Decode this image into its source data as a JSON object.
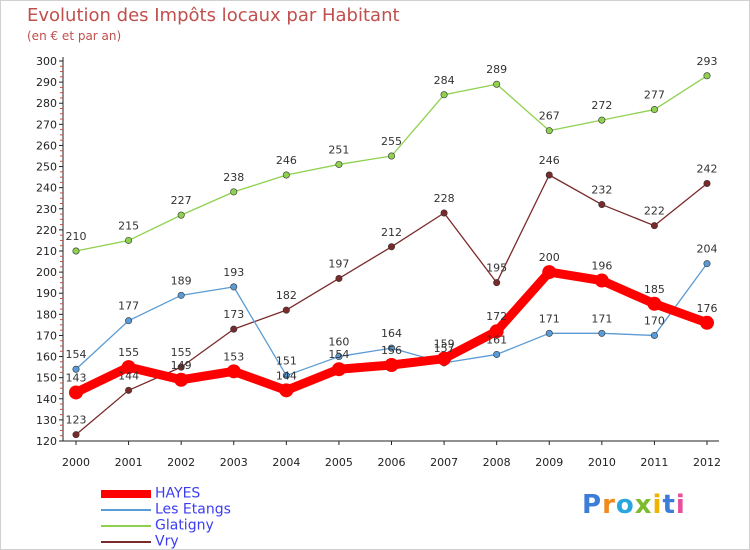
{
  "title": "Evolution des Impôts locaux par Habitant",
  "subtitle": "(en € et par an)",
  "logo": "Proxiti",
  "chart_data": {
    "type": "line",
    "title": "Evolution des Impôts locaux par Habitant",
    "subtitle": "(en € et par an)",
    "xlabel": "",
    "ylabel": "",
    "ylim": [
      120,
      300
    ],
    "ytick_step": 10,
    "grid": false,
    "legend_position": "bottom-left",
    "categories": [
      "2000",
      "2001",
      "2002",
      "2003",
      "2004",
      "2005",
      "2006",
      "2007",
      "2008",
      "2009",
      "2010",
      "2011",
      "2012"
    ],
    "series": [
      {
        "name": "HAYES",
        "color": "#ff0000",
        "values": [
          143,
          155,
          149,
          153,
          144,
          154,
          156,
          159,
          172,
          200,
          196,
          185,
          176
        ]
      },
      {
        "name": "Les Etangs",
        "color": "#5a9bd5",
        "values": [
          154,
          177,
          189,
          193,
          151,
          160,
          164,
          157,
          161,
          171,
          171,
          170,
          204
        ]
      },
      {
        "name": "Glatigny",
        "color": "#8fd14f",
        "values": [
          210,
          215,
          227,
          238,
          246,
          251,
          255,
          284,
          289,
          267,
          272,
          277,
          293
        ]
      },
      {
        "name": "Vry",
        "color": "#7a2a2a",
        "values": [
          123,
          144,
          155,
          173,
          182,
          197,
          212,
          228,
          195,
          246,
          232,
          222,
          242
        ]
      }
    ]
  }
}
